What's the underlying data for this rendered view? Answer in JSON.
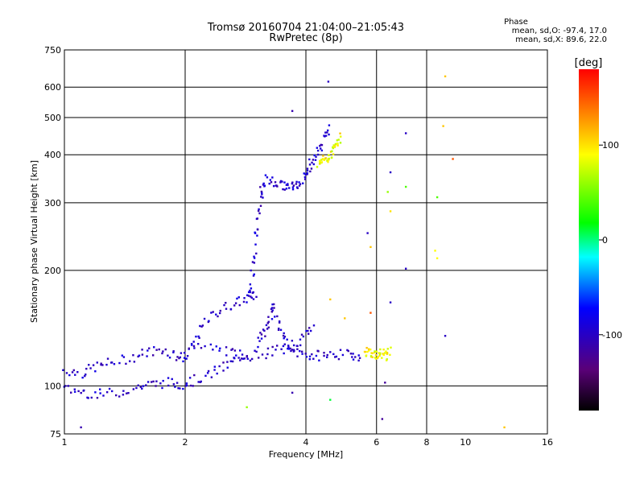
{
  "chart_data": {
    "type": "scatter",
    "title": "Tromsø 20160704 21:04:00–21:05:43",
    "subtitle": "RwPretec (8p)",
    "xlabel": "Frequency [MHz]",
    "ylabel": "Stationary phase Virtual Height [km]",
    "x_scale": "log",
    "y_scale": "log",
    "xlim": [
      1,
      16
    ],
    "ylim": [
      75,
      750
    ],
    "x_ticks": [
      1,
      2,
      4,
      6,
      8,
      10,
      16
    ],
    "x_tick_labels": [
      "1",
      "2",
      "4",
      "6",
      "8",
      "10",
      "16"
    ],
    "x_gridlines": [
      2,
      4,
      6,
      8
    ],
    "y_ticks": [
      75,
      100,
      200,
      300,
      400,
      500,
      600,
      750
    ],
    "y_tick_labels": [
      "75",
      "100",
      "200",
      "300",
      "400",
      "500",
      "600",
      "750"
    ],
    "y_gridlines": [
      100,
      200,
      300,
      400,
      500,
      600
    ],
    "grid": true,
    "colorbar": {
      "label": "[deg]",
      "range": [
        -180,
        180
      ],
      "ticks": [
        100,
        0,
        -100
      ],
      "tick_labels": [
        "100",
        "0",
        "-100"
      ],
      "colors": [
        "#000000",
        "#5a0078",
        "#0000ff",
        "#00ffff",
        "#00ff00",
        "#ffff00",
        "#ff0000"
      ]
    },
    "phase_stats": {
      "heading": "Phase",
      "o_label": "mean, sd,O:",
      "o_values": "-97.4, 17.0",
      "x_label": "mean, sd,X:",
      "x_values": "89.6, 22.0",
      "o_mean": -97.4,
      "o_sd": 17.0,
      "x_mean": 89.6,
      "x_sd": 22.0
    },
    "series": [
      {
        "mode": "O",
        "traces": [
          {
            "f": [
              1.0,
              1.1,
              1.2,
              1.3,
              1.45,
              1.6,
              1.75,
              1.9,
              2.0,
              2.15,
              2.3,
              2.5,
              2.7,
              2.9,
              3.0
            ],
            "h": [
              110,
              108,
              112,
              115,
              118,
              122,
              125,
              120,
              118,
              135,
              150,
              160,
              165,
              170,
              175
            ]
          },
          {
            "f": [
              1.0,
              1.1,
              1.2,
              1.35,
              1.5,
              1.65,
              1.8,
              1.95,
              2.1,
              2.3,
              2.5,
              2.7,
              2.9
            ],
            "h": [
              98,
              97,
              95,
              96,
              99,
              101,
              102,
              101,
              103,
              107,
              112,
              118,
              122
            ]
          },
          {
            "f": [
              2.0,
              2.3,
              2.6,
              2.9,
              3.2,
              3.5,
              3.8,
              4.1,
              4.4,
              4.8,
              5.2,
              5.5
            ],
            "h": [
              125,
              126,
              122,
              120,
              122,
              125,
              122,
              120,
              120,
              121,
              120,
              120
            ]
          },
          {
            "f": [
              2.9,
              2.95,
              3.0,
              3.05,
              3.1,
              3.15
            ],
            "h": [
              170,
              200,
              240,
              280,
              320,
              340
            ]
          },
          {
            "f": [
              3.2,
              3.35,
              3.5,
              3.65,
              3.8,
              3.95,
              4.05,
              4.15,
              4.3,
              4.45,
              4.6
            ],
            "h": [
              345,
              340,
              332,
              330,
              334,
              345,
              365,
              385,
              410,
              440,
              480
            ]
          },
          {
            "f": [
              3.05,
              3.15,
              3.25,
              3.35,
              3.45,
              3.6,
              3.75,
              3.95,
              4.2
            ],
            "h": [
              130,
              140,
              150,
              160,
              140,
              130,
              125,
              135,
              145
            ]
          }
        ]
      },
      {
        "mode": "X",
        "traces": [
          {
            "f": [
              4.3,
              4.4,
              4.5,
              4.6,
              4.7,
              4.8,
              4.9
            ],
            "h": [
              380,
              385,
              392,
              400,
              415,
              430,
              450
            ]
          },
          {
            "f": [
              5.6,
              5.75,
              5.9,
              6.05,
              6.2,
              6.35,
              6.5
            ],
            "h": [
              123,
              122,
              121,
              121,
              122,
              120,
              123
            ]
          }
        ]
      }
    ],
    "outliers": [
      {
        "f": 4.55,
        "h": 620,
        "phase": -100
      },
      {
        "f": 3.7,
        "h": 520,
        "phase": -110
      },
      {
        "f": 8.9,
        "h": 640,
        "phase": 110
      },
      {
        "f": 8.8,
        "h": 475,
        "phase": 110
      },
      {
        "f": 9.3,
        "h": 390,
        "phase": 150
      },
      {
        "f": 7.1,
        "h": 455,
        "phase": -100
      },
      {
        "f": 6.5,
        "h": 360,
        "phase": -100
      },
      {
        "f": 7.1,
        "h": 330,
        "phase": 40
      },
      {
        "f": 8.5,
        "h": 310,
        "phase": 40
      },
      {
        "f": 6.4,
        "h": 320,
        "phase": 60
      },
      {
        "f": 6.5,
        "h": 285,
        "phase": 100
      },
      {
        "f": 5.7,
        "h": 250,
        "phase": -100
      },
      {
        "f": 5.8,
        "h": 230,
        "phase": 110
      },
      {
        "f": 8.4,
        "h": 225,
        "phase": 90
      },
      {
        "f": 8.5,
        "h": 215,
        "phase": 90
      },
      {
        "f": 7.1,
        "h": 202,
        "phase": -100
      },
      {
        "f": 6.5,
        "h": 165,
        "phase": -100
      },
      {
        "f": 5.8,
        "h": 155,
        "phase": 150
      },
      {
        "f": 4.6,
        "h": 168,
        "phase": 110
      },
      {
        "f": 5.0,
        "h": 150,
        "phase": 110
      },
      {
        "f": 6.3,
        "h": 102,
        "phase": -120
      },
      {
        "f": 6.2,
        "h": 82,
        "phase": -120
      },
      {
        "f": 4.6,
        "h": 92,
        "phase": 10
      },
      {
        "f": 3.7,
        "h": 96,
        "phase": -110
      },
      {
        "f": 2.85,
        "h": 88,
        "phase": 60
      },
      {
        "f": 8.9,
        "h": 135,
        "phase": -100
      },
      {
        "f": 12.5,
        "h": 78,
        "phase": 110
      },
      {
        "f": 1.1,
        "h": 78,
        "phase": -110
      }
    ]
  }
}
